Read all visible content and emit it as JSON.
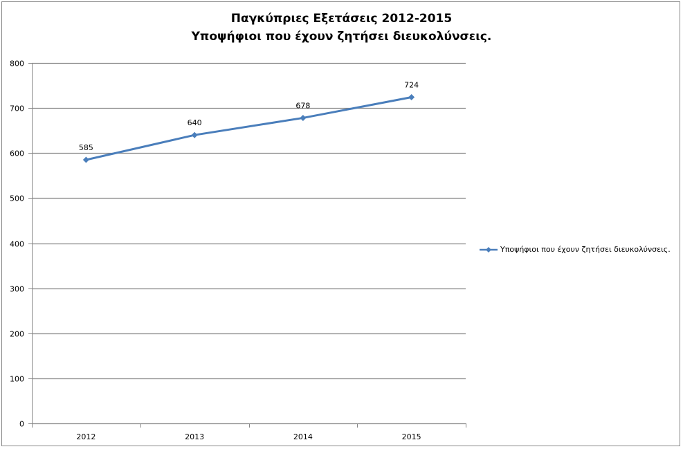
{
  "chart_data": {
    "type": "line",
    "title": [
      "Παγκύπριες Εξετάσεις 2012-2015",
      "Υποψήφιοι που έχουν ζητήσει διευκολύνσεις."
    ],
    "categories": [
      "2012",
      "2013",
      "2014",
      "2015"
    ],
    "series": [
      {
        "name": "Υποψήφιοι  που έχουν ζητήσει διευκολύνσεις.",
        "values": [
          585,
          640,
          678,
          724
        ],
        "color": "#4a7ebb"
      }
    ],
    "ylim": [
      0,
      800
    ],
    "yticks": [
      0,
      100,
      200,
      300,
      400,
      500,
      600,
      700,
      800
    ],
    "grid": true,
    "legend": "right",
    "data_labels": true
  }
}
